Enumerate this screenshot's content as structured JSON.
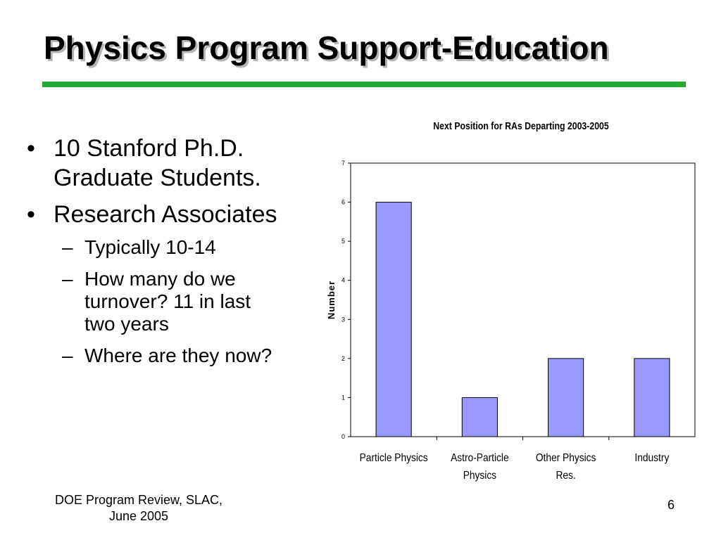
{
  "slide": {
    "title": "Physics Program Support-Education",
    "accent_color": "#22aa33",
    "footer_left_line1": "DOE Program Review, SLAC,",
    "footer_left_line2": "June 2005",
    "slide_number": "6"
  },
  "bullets": {
    "item1_line1": "10 Stanford Ph.D.",
    "item1_line2": "Graduate Students.",
    "item2": "Research Associates",
    "sub1": "Typically 10-14",
    "sub2_line1": "How many do we",
    "sub2_line2": "turnover? 11 in last",
    "sub2_line3": "two years",
    "sub3": "Where are they now?",
    "bullet_glyph": "•",
    "dash_glyph": "–"
  },
  "chart_data": {
    "type": "bar",
    "title": "Next Position for RAs Departing 2003-2005",
    "xlabel": "",
    "ylabel": "Number",
    "categories": [
      [
        "Particle Physics"
      ],
      [
        "Astro-Particle",
        "Physics"
      ],
      [
        "Other Physics",
        "Res."
      ],
      [
        "Industry"
      ]
    ],
    "values": [
      6,
      1,
      2,
      2
    ],
    "ylim": [
      0,
      7
    ],
    "yticks": [
      0,
      1,
      2,
      3,
      4,
      5,
      6,
      7
    ],
    "grid": false,
    "legend": "none",
    "bar_color": "#9999ff",
    "bar_edge_color": "#000000"
  }
}
